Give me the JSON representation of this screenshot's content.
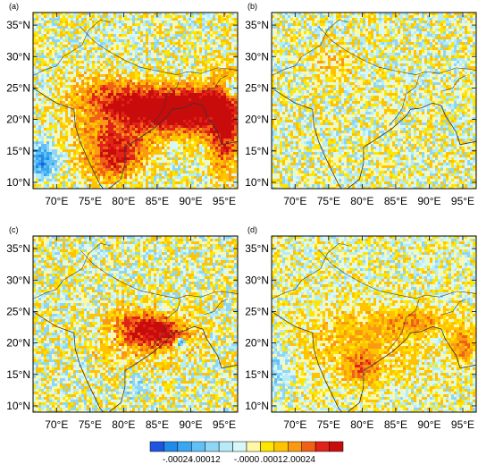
{
  "chart_data": [
    {
      "type": "heatmap",
      "panel_label": "(a)",
      "xticks": [
        "70°E",
        "75°E",
        "80°E",
        "85°E",
        "90°E",
        "95°E"
      ],
      "yticks": [
        "10°N",
        "15°N",
        "20°N",
        "25°N",
        "30°N",
        "35°N"
      ],
      "xlim": [
        66.5,
        97.0
      ],
      "ylim": [
        9.0,
        37.0
      ],
      "hotspots": [
        {
          "lon": 84.0,
          "lat": 21.5,
          "rx": 8.5,
          "ry": 3.2,
          "amp": 0.00034,
          "rot": -15
        },
        {
          "lon": 90.5,
          "lat": 22.5,
          "rx": 6.0,
          "ry": 3.0,
          "amp": 0.0003,
          "rot": 0
        },
        {
          "lon": 95.0,
          "lat": 19.0,
          "rx": 2.2,
          "ry": 7.0,
          "amp": 0.0003,
          "rot": 0
        },
        {
          "lon": 79.0,
          "lat": 14.5,
          "rx": 4.0,
          "ry": 3.5,
          "amp": 0.00026,
          "rot": 30
        },
        {
          "lon": 77.5,
          "lat": 19.0,
          "rx": 6.0,
          "ry": 6.0,
          "amp": 0.00012,
          "rot": 0
        },
        {
          "lon": 68.0,
          "lat": 13.5,
          "rx": 1.8,
          "ry": 2.5,
          "amp": -0.00026,
          "rot": 0
        },
        {
          "lon": 96.0,
          "lat": 24.5,
          "rx": 1.5,
          "ry": 1.5,
          "amp": -0.00022,
          "rot": 0
        }
      ],
      "noise_amplitude": 9e-05
    },
    {
      "type": "heatmap",
      "panel_label": "(b)",
      "xticks": [
        "70°E",
        "75°E",
        "80°E",
        "85°E",
        "90°E",
        "95°E"
      ],
      "yticks": [
        "10°N",
        "15°N",
        "20°N",
        "25°N",
        "30°N",
        "35°N"
      ],
      "xlim": [
        66.5,
        97.0
      ],
      "ylim": [
        9.0,
        37.0
      ],
      "hotspots": [
        {
          "lon": 76.0,
          "lat": 28.5,
          "rx": 3.0,
          "ry": 3.0,
          "amp": 8e-05,
          "rot": 0
        }
      ],
      "noise_amplitude": 9e-05
    },
    {
      "type": "heatmap",
      "panel_label": "(c)",
      "xticks": [
        "70°E",
        "75°E",
        "80°E",
        "85°E",
        "90°E",
        "95°E"
      ],
      "yticks": [
        "10°N",
        "15°N",
        "20°N",
        "25°N",
        "30°N",
        "35°N"
      ],
      "xlim": [
        66.5,
        97.0
      ],
      "ylim": [
        9.0,
        37.0
      ],
      "hotspots": [
        {
          "lon": 84.5,
          "lat": 22.0,
          "rx": 5.0,
          "ry": 2.5,
          "amp": 0.00034,
          "rot": -10
        },
        {
          "lon": 81.5,
          "lat": 19.0,
          "rx": 5.0,
          "ry": 5.0,
          "amp": 8e-05,
          "rot": 0
        },
        {
          "lon": 88.5,
          "lat": 20.0,
          "rx": 0.8,
          "ry": 0.8,
          "amp": -0.0003,
          "rot": 0
        },
        {
          "lon": 82.0,
          "lat": 13.5,
          "rx": 2.0,
          "ry": 2.5,
          "amp": -0.0001,
          "rot": 0
        }
      ],
      "noise_amplitude": 0.0001
    },
    {
      "type": "heatmap",
      "panel_label": "(d)",
      "xticks": [
        "70°E",
        "75°E",
        "80°E",
        "85°E",
        "90°E",
        "95°E"
      ],
      "yticks": [
        "10°N",
        "15°N",
        "20°N",
        "25°N",
        "30°N",
        "35°N"
      ],
      "xlim": [
        66.5,
        97.0
      ],
      "ylim": [
        9.0,
        37.0
      ],
      "hotspots": [
        {
          "lon": 80.0,
          "lat": 20.0,
          "rx": 9.0,
          "ry": 6.0,
          "amp": 0.0001,
          "rot": 0
        },
        {
          "lon": 80.0,
          "lat": 16.0,
          "rx": 2.2,
          "ry": 2.0,
          "amp": 0.00016,
          "rot": 0
        },
        {
          "lon": 88.0,
          "lat": 23.5,
          "rx": 4.5,
          "ry": 2.0,
          "amp": 0.00013,
          "rot": 0
        },
        {
          "lon": 95.0,
          "lat": 19.5,
          "rx": 1.8,
          "ry": 3.0,
          "amp": 0.00016,
          "rot": 0
        },
        {
          "lon": 67.5,
          "lat": 16.0,
          "rx": 1.5,
          "ry": 4.0,
          "amp": -0.0001,
          "rot": 0
        }
      ],
      "noise_amplitude": 8e-05
    }
  ],
  "colorbar": {
    "colors": [
      "#1e54e0",
      "#1f8ae8",
      "#3aa6f0",
      "#63c0f5",
      "#8ed6f6",
      "#b6ecf7",
      "#d8f7f8",
      "#fff8a6",
      "#ffe600",
      "#ffc400",
      "#fa9a13",
      "#f06015",
      "#e02219",
      "#c80c0c"
    ],
    "levels": [
      -0.0003,
      -0.00024,
      -0.00018,
      -0.00012,
      -6e-05,
      -3e-05,
      0,
      3e-05,
      6e-05,
      0.00012,
      0.00018,
      0.00024,
      0.0003
    ],
    "labels": [
      ".00024",
      ".00012",
      ".0000",
      ".00012",
      ".00024"
    ],
    "label_signs": [
      "-",
      "-",
      "-",
      "",
      ""
    ]
  }
}
